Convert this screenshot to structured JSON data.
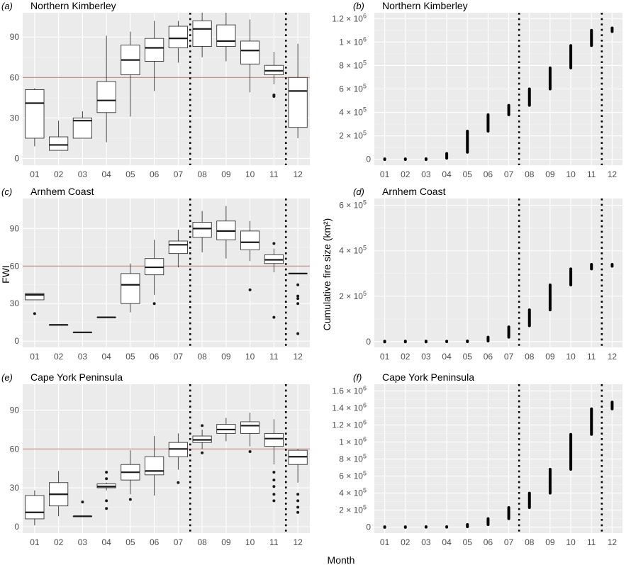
{
  "shared": {
    "xlabel_fwi": "Month",
    "ylabel_fwi": "FWI",
    "ylabel_fire": "Cumulative fire size (km²)"
  },
  "chart_data": [
    {
      "id": "a",
      "tag": "(a)",
      "title": "Northern Kimberley",
      "type": "box",
      "categories": [
        "01",
        "02",
        "03",
        "04",
        "05",
        "06",
        "07",
        "08",
        "09",
        "10",
        "11",
        "12"
      ],
      "ylim": [
        -5,
        108
      ],
      "yticks": [
        0,
        30,
        60,
        90
      ],
      "threshold": 60,
      "vlines_after": [
        "07",
        "11"
      ],
      "boxes": [
        {
          "min": 9,
          "q1": 15,
          "med": 41,
          "q3": 51,
          "max": 52,
          "out": []
        },
        {
          "min": 6,
          "q1": 6,
          "med": 10,
          "q3": 16,
          "max": 28,
          "out": []
        },
        {
          "min": 15,
          "q1": 15,
          "med": 28,
          "q3": 30,
          "max": 35,
          "out": []
        },
        {
          "min": 12,
          "q1": 34,
          "med": 43,
          "q3": 57,
          "max": 91,
          "out": []
        },
        {
          "min": 31,
          "q1": 62,
          "med": 73,
          "q3": 84,
          "max": 94,
          "out": []
        },
        {
          "min": 50,
          "q1": 72,
          "med": 82,
          "q3": 89,
          "max": 102,
          "out": []
        },
        {
          "min": 71,
          "q1": 82,
          "med": 89,
          "q3": 98,
          "max": 102,
          "out": []
        },
        {
          "min": 75,
          "q1": 83,
          "med": 96,
          "q3": 102,
          "max": 108,
          "out": []
        },
        {
          "min": 72,
          "q1": 83,
          "med": 87,
          "q3": 99,
          "max": 108,
          "out": []
        },
        {
          "min": 49,
          "q1": 70,
          "med": 80,
          "q3": 87,
          "max": 103,
          "out": []
        },
        {
          "min": 55,
          "q1": 62,
          "med": 65,
          "q3": 69,
          "max": 79,
          "out": [
            46,
            47
          ]
        },
        {
          "min": 15,
          "q1": 23,
          "med": 50,
          "q3": 60,
          "max": 85,
          "out": []
        }
      ]
    },
    {
      "id": "b",
      "tag": "(b)",
      "title": "Northern Kimberley",
      "type": "range",
      "categories": [
        "01",
        "02",
        "03",
        "04",
        "05",
        "06",
        "07",
        "08",
        "09",
        "10",
        "11",
        "12"
      ],
      "ylim": [
        -50000,
        1250000
      ],
      "yticks": [
        0,
        200000,
        400000,
        600000,
        800000,
        1000000,
        1200000
      ],
      "ytick_labels": [
        {
          "m": "0",
          "e": ""
        },
        {
          "m": "2 × 10",
          "e": "5"
        },
        {
          "m": "4 × 10",
          "e": "5"
        },
        {
          "m": "6 × 10",
          "e": "5"
        },
        {
          "m": "8 × 10",
          "e": "5"
        },
        {
          "m": "1 × 10",
          "e": "6"
        },
        {
          "m": "1.2 × 10",
          "e": "6"
        }
      ],
      "vlines_after": [
        "07",
        "11"
      ],
      "ranges": [
        [
          0,
          2000
        ],
        [
          0,
          2000
        ],
        [
          0,
          3000
        ],
        [
          10000,
          50000
        ],
        [
          60000,
          240000
        ],
        [
          240000,
          380000
        ],
        [
          380000,
          460000
        ],
        [
          460000,
          600000
        ],
        [
          600000,
          780000
        ],
        [
          780000,
          970000
        ],
        [
          970000,
          1100000
        ],
        [
          1090000,
          1120000
        ]
      ]
    },
    {
      "id": "c",
      "tag": "(c)",
      "title": "Arnhem Coast",
      "type": "box",
      "categories": [
        "01",
        "02",
        "03",
        "04",
        "05",
        "06",
        "07",
        "08",
        "09",
        "10",
        "11",
        "12"
      ],
      "ylim": [
        -5,
        114
      ],
      "yticks": [
        0,
        30,
        60,
        90
      ],
      "threshold": 60,
      "vlines_after": [
        "07",
        "11"
      ],
      "boxes": [
        {
          "min": 33,
          "q1": 33,
          "med": 37,
          "q3": 38,
          "max": 38,
          "out": [
            22
          ]
        },
        {
          "min": 13,
          "q1": 13,
          "med": 13,
          "q3": 13,
          "max": 13,
          "out": []
        },
        {
          "min": 7,
          "q1": 7,
          "med": 7,
          "q3": 7,
          "max": 7,
          "out": []
        },
        {
          "min": 19,
          "q1": 19,
          "med": 19,
          "q3": 19,
          "max": 19,
          "out": []
        },
        {
          "min": 23,
          "q1": 30,
          "med": 45,
          "q3": 54,
          "max": 62,
          "out": []
        },
        {
          "min": 37,
          "q1": 53,
          "med": 59,
          "q3": 66,
          "max": 81,
          "out": [
            30
          ]
        },
        {
          "min": 59,
          "q1": 70,
          "med": 77,
          "q3": 80,
          "max": 89,
          "out": []
        },
        {
          "min": 71,
          "q1": 83,
          "med": 90,
          "q3": 95,
          "max": 104,
          "out": []
        },
        {
          "min": 66,
          "q1": 81,
          "med": 88,
          "q3": 96,
          "max": 108,
          "out": []
        },
        {
          "min": 64,
          "q1": 73,
          "med": 79,
          "q3": 88,
          "max": 96,
          "out": [
            41
          ]
        },
        {
          "min": 55,
          "q1": 62,
          "med": 65,
          "q3": 69,
          "max": 74,
          "out": [
            19,
            78
          ]
        },
        {
          "min": 54,
          "q1": 54,
          "med": 54,
          "q3": 54,
          "max": 54,
          "out": [
            45,
            36,
            34,
            30,
            6
          ]
        }
      ]
    },
    {
      "id": "d",
      "tag": "(d)",
      "title": "Arnhem Coast",
      "type": "range",
      "categories": [
        "01",
        "02",
        "03",
        "04",
        "05",
        "06",
        "07",
        "08",
        "09",
        "10",
        "11",
        "12"
      ],
      "ylim": [
        -25000,
        630000
      ],
      "yticks": [
        0,
        200000,
        400000,
        600000
      ],
      "ytick_labels": [
        {
          "m": "0",
          "e": ""
        },
        {
          "m": "2 × 10",
          "e": "5"
        },
        {
          "m": "4 × 10",
          "e": "5"
        },
        {
          "m": "6 × 10",
          "e": "5"
        }
      ],
      "vlines_after": [
        "07",
        "11"
      ],
      "ranges": [
        [
          0,
          1000
        ],
        [
          0,
          1500
        ],
        [
          0,
          1500
        ],
        [
          0,
          2000
        ],
        [
          0,
          3000
        ],
        [
          3000,
          20000
        ],
        [
          20000,
          65000
        ],
        [
          70000,
          140000
        ],
        [
          140000,
          250000
        ],
        [
          250000,
          320000
        ],
        [
          320000,
          340000
        ],
        [
          332000,
          340000
        ]
      ]
    },
    {
      "id": "e",
      "tag": "(e)",
      "title": "Cape York Peninsula",
      "type": "box",
      "categories": [
        "01",
        "02",
        "03",
        "04",
        "05",
        "06",
        "07",
        "08",
        "09",
        "10",
        "11",
        "12"
      ],
      "ylim": [
        -5,
        110
      ],
      "yticks": [
        0,
        30,
        60,
        90
      ],
      "threshold": 60,
      "vlines_after": [
        "07",
        "11"
      ],
      "boxes": [
        {
          "min": 1,
          "q1": 6,
          "med": 11,
          "q3": 24,
          "max": 28,
          "out": []
        },
        {
          "min": 8,
          "q1": 16,
          "med": 25,
          "q3": 34,
          "max": 43,
          "out": []
        },
        {
          "min": 8,
          "q1": 8,
          "med": 8,
          "q3": 8,
          "max": 8,
          "out": [
            19
          ]
        },
        {
          "min": 28,
          "q1": 30,
          "med": 31,
          "q3": 33,
          "max": 34,
          "out": [
            14,
            20,
            37,
            42
          ]
        },
        {
          "min": 25,
          "q1": 36,
          "med": 42,
          "q3": 48,
          "max": 59,
          "out": [
            21
          ]
        },
        {
          "min": 24,
          "q1": 40,
          "med": 43,
          "q3": 54,
          "max": 70,
          "out": []
        },
        {
          "min": 44,
          "q1": 54,
          "med": 60,
          "q3": 65,
          "max": 72,
          "out": [
            34
          ]
        },
        {
          "min": 60,
          "q1": 65,
          "med": 67,
          "q3": 70,
          "max": 75,
          "out": [
            57,
            78
          ]
        },
        {
          "min": 66,
          "q1": 72,
          "med": 75,
          "q3": 79,
          "max": 84,
          "out": []
        },
        {
          "min": 62,
          "q1": 72,
          "med": 78,
          "q3": 81,
          "max": 88,
          "out": [
            58
          ]
        },
        {
          "min": 48,
          "q1": 62,
          "med": 68,
          "q3": 72,
          "max": 83,
          "out": [
            20,
            25,
            31,
            36,
            42
          ]
        },
        {
          "min": 34,
          "q1": 48,
          "med": 54,
          "q3": 59,
          "max": 60,
          "out": [
            11,
            15,
            20,
            25
          ]
        }
      ]
    },
    {
      "id": "f",
      "tag": "(f)",
      "title": "Cape York Peninsula",
      "type": "range",
      "categories": [
        "01",
        "02",
        "03",
        "04",
        "05",
        "06",
        "07",
        "08",
        "09",
        "10",
        "11",
        "12"
      ],
      "ylim": [
        -70000,
        1680000
      ],
      "yticks": [
        0,
        200000,
        400000,
        600000,
        800000,
        1000000,
        1200000,
        1400000,
        1600000
      ],
      "ytick_labels": [
        {
          "m": "0",
          "e": ""
        },
        {
          "m": "2 × 10",
          "e": "5"
        },
        {
          "m": "4 × 10",
          "e": "5"
        },
        {
          "m": "6 × 10",
          "e": "5"
        },
        {
          "m": "8 × 10",
          "e": "5"
        },
        {
          "m": "1 × 10",
          "e": "6"
        },
        {
          "m": "1.2 × 10",
          "e": "6"
        },
        {
          "m": "1.4 × 10",
          "e": "6"
        },
        {
          "m": "1.6 × 10",
          "e": "6"
        }
      ],
      "vlines_after": [
        "07",
        "11"
      ],
      "ranges": [
        [
          0,
          2000
        ],
        [
          0,
          2000
        ],
        [
          0,
          5000
        ],
        [
          0,
          5000
        ],
        [
          5000,
          30000
        ],
        [
          30000,
          100000
        ],
        [
          100000,
          230000
        ],
        [
          230000,
          400000
        ],
        [
          400000,
          680000
        ],
        [
          680000,
          1090000
        ],
        [
          1090000,
          1390000
        ],
        [
          1390000,
          1470000
        ]
      ]
    }
  ]
}
